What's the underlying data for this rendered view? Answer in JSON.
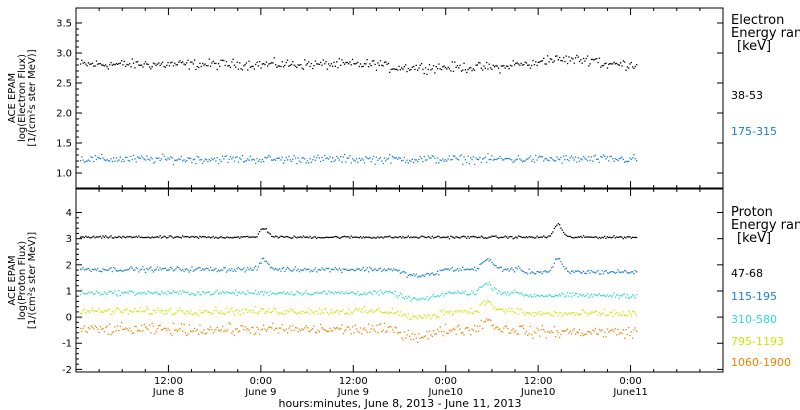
{
  "colors": {
    "black": "#000000",
    "blue": "#1a7fd0",
    "cyan": "#30d8c8",
    "yellow": "#c8e800",
    "orange": "#f08000"
  },
  "chart_data": [
    {
      "type": "scatter",
      "ylabel_lines": [
        "ACE EPAM",
        "log(Electron Flux)",
        "[1/(cm²s ster MeV)]"
      ],
      "ylim": [
        0.75,
        3.75
      ],
      "yticks": [
        1.0,
        1.5,
        2.0,
        2.5,
        3.0,
        3.5
      ],
      "ytick_labels": [
        "1.0",
        "1.5",
        "2.0",
        "2.5",
        "3.0",
        "3.5"
      ],
      "legend_title": [
        "Electron",
        "Energy ranges",
        "[keV]"
      ],
      "series": [
        {
          "name": "38-53",
          "color": "#000000",
          "level": 2.82,
          "noise": 0.07
        },
        {
          "name": "175-315",
          "color": "#1a7fd0",
          "level": 1.24,
          "noise": 0.06
        }
      ]
    },
    {
      "type": "scatter",
      "ylabel_lines": [
        "ACE EPAM",
        "log(Proton Flux)",
        "[1/(cm²s ster MeV)]"
      ],
      "ylim": [
        -2.1,
        4.9
      ],
      "yticks": [
        -2,
        -1,
        0,
        1,
        2,
        3,
        4
      ],
      "ytick_labels": [
        "-2",
        "-1",
        "0",
        "1",
        "2",
        "3",
        "4"
      ],
      "legend_title": [
        "Proton",
        "Energy ranges",
        "[keV]"
      ],
      "series": [
        {
          "name": "47-68",
          "color": "#000000",
          "level": 3.08,
          "noise": 0.04
        },
        {
          "name": "115-195",
          "color": "#1a7fd0",
          "level": 1.85,
          "noise": 0.08
        },
        {
          "name": "310-580",
          "color": "#30d8c8",
          "level": 0.95,
          "noise": 0.08
        },
        {
          "name": "795-1193",
          "color": "#c8e800",
          "level": 0.25,
          "noise": 0.12
        },
        {
          "name": "1060-1900",
          "color": "#f08000",
          "level": -0.45,
          "noise": 0.18
        }
      ]
    }
  ],
  "xaxis": {
    "range_hours": [
      0,
      84
    ],
    "tick_labels": [
      {
        "hour": 12,
        "time": "12:00",
        "date": "June 8"
      },
      {
        "hour": 24,
        "time": "0:00",
        "date": "June 9"
      },
      {
        "hour": 36,
        "time": "12:00",
        "date": "June 9"
      },
      {
        "hour": 48,
        "time": "0:00",
        "date": "June10"
      },
      {
        "hour": 60,
        "time": "12:00",
        "date": "June10"
      },
      {
        "hour": 72,
        "time": "0:00",
        "date": "June11"
      }
    ],
    "title": "hours:minutes, June  8, 2013 - June 11, 2013"
  }
}
